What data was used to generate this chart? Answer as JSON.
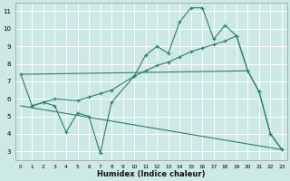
{
  "xlabel": "Humidex (Indice chaleur)",
  "bg_color": "#cce9e5",
  "line_color": "#2e7d6e",
  "grid_color": "#ffffff",
  "xlim": [
    -0.5,
    23.5
  ],
  "ylim": [
    2.5,
    11.5
  ],
  "xticks": [
    0,
    1,
    2,
    3,
    4,
    5,
    6,
    7,
    8,
    9,
    10,
    11,
    12,
    13,
    14,
    15,
    16,
    17,
    18,
    19,
    20,
    21,
    22,
    23
  ],
  "yticks": [
    3,
    4,
    5,
    6,
    7,
    8,
    9,
    10,
    11
  ],
  "series": [
    {
      "x": [
        0,
        1,
        2,
        3,
        4,
        5,
        6,
        7,
        8,
        10,
        11,
        12,
        13,
        14,
        15,
        16,
        17,
        18,
        19,
        20,
        21,
        22,
        23
      ],
      "y": [
        7.4,
        5.6,
        5.8,
        5.6,
        4.1,
        5.2,
        5.0,
        2.9,
        5.8,
        7.3,
        8.5,
        9.0,
        8.6,
        10.4,
        11.2,
        11.2,
        9.4,
        10.2,
        9.6,
        7.6,
        6.4,
        4.0,
        3.1
      ]
    },
    {
      "x": [
        1,
        2,
        3,
        5,
        6,
        7,
        8,
        10,
        11,
        12,
        13,
        14,
        15,
        16,
        17,
        18,
        19,
        20,
        21,
        22,
        23
      ],
      "y": [
        5.6,
        5.8,
        6.0,
        5.9,
        6.1,
        6.3,
        6.5,
        7.3,
        7.6,
        7.9,
        8.1,
        8.4,
        8.7,
        8.9,
        9.1,
        9.3,
        9.6,
        7.6,
        6.4,
        4.0,
        3.1
      ]
    },
    {
      "x": [
        0,
        23
      ],
      "y": [
        5.6,
        3.1
      ]
    },
    {
      "x": [
        0,
        20
      ],
      "y": [
        7.4,
        7.6
      ]
    }
  ]
}
